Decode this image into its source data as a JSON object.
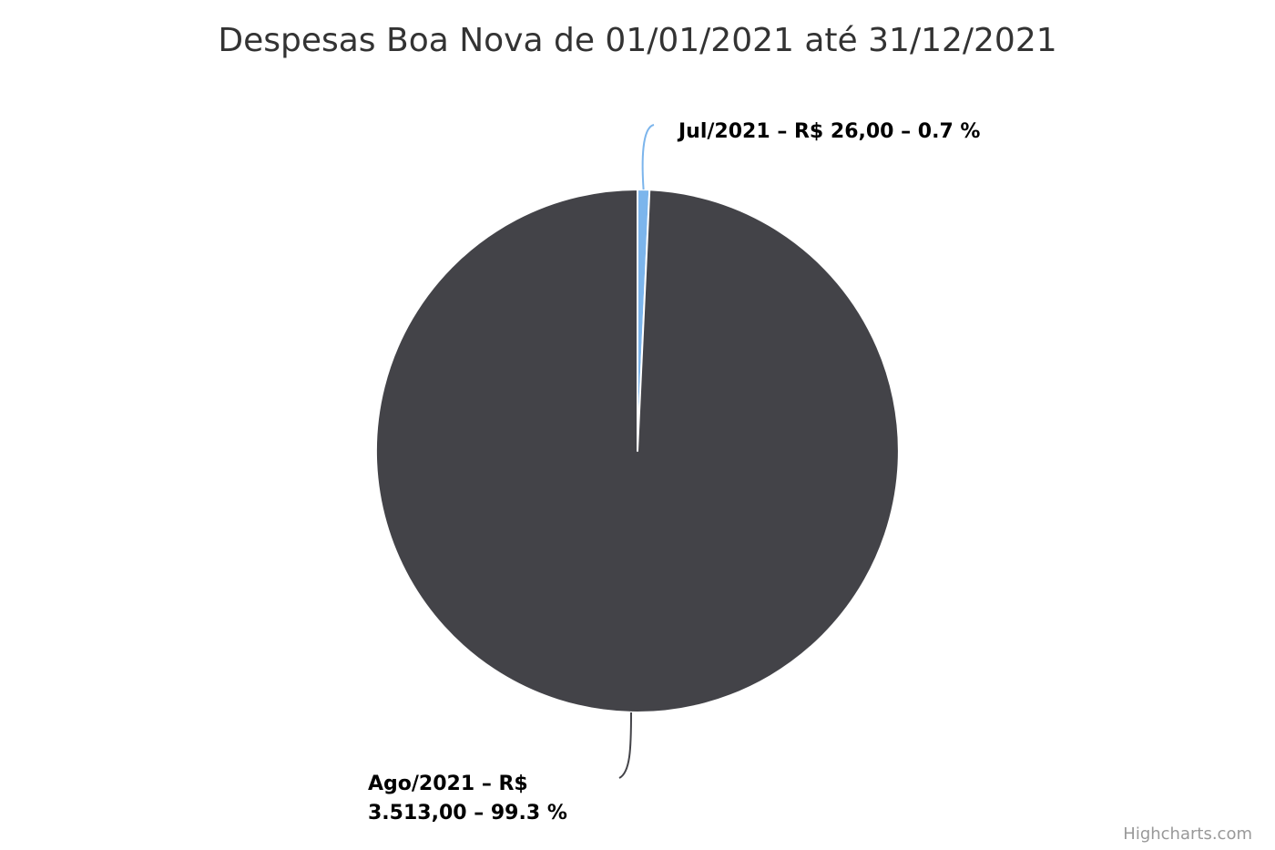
{
  "chart_data": {
    "type": "pie",
    "title": "Despesas Boa Nova de 01/01/2021 até 31/12/2021",
    "series": [
      {
        "values": [
          {
            "name": "Jul/2021",
            "value": 26.0,
            "percent": 0.7,
            "color": "#7cb5ec",
            "label_lines": [
              "Jul/2021 – R$ 26,00 – 0.7 %"
            ]
          },
          {
            "name": "Ago/2021",
            "value": 3513.0,
            "percent": 99.3,
            "color": "#434348",
            "label_lines": [
              "Ago/2021 – R$",
              "3.513,00 – 99.3 %"
            ]
          }
        ]
      }
    ],
    "start_angle_deg": 0,
    "legend": "none",
    "credits": "Highcharts.com"
  }
}
